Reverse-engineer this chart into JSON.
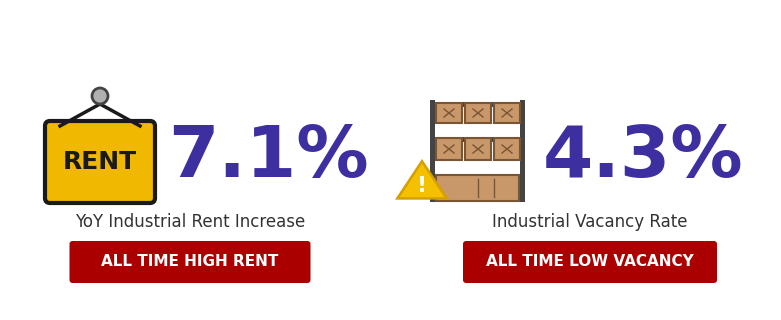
{
  "bg_color": "#ffffff",
  "left_pct": "7.1%",
  "right_pct": "4.3%",
  "left_label": "YoY Industrial Rent Increase",
  "right_label": "Industrial Vacancy Rate",
  "left_btn": "ALL TIME HIGH RENT",
  "right_btn": "ALL TIME LOW VACANCY",
  "pct_color": "#3d2fa0",
  "btn_color": "#aa0000",
  "btn_text_color": "#ffffff",
  "label_color": "#333333",
  "sign_yellow": "#f0b800",
  "sign_border": "#1a1a1a",
  "box_fill": "#c8976a",
  "box_border": "#7a5533",
  "shelf_color": "#444444",
  "tri_yellow": "#f5c000",
  "tri_border": "#d4a000",
  "circle_fill": "#b0b0b0",
  "circle_border": "#444444"
}
